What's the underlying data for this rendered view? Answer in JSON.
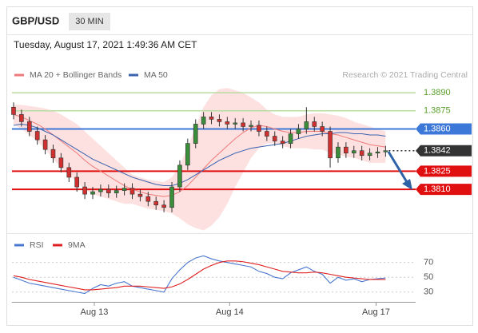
{
  "header": {
    "symbol": "GBP/USD",
    "timeframe": "30 MIN",
    "timestamp": "Tuesday, August 17, 2021 1:49:36 AM CET"
  },
  "chart_data": [
    {
      "type": "candlestick",
      "source": "Research © 2021 Trading Central",
      "up_color": "#3a8d3a",
      "down_color": "#d03030",
      "xlim": [
        -0.2,
        50.8
      ],
      "xticks": [
        {
          "value": 10.2,
          "label": "Aug 13"
        },
        {
          "value": 27.3,
          "label": "Aug 14"
        },
        {
          "value": 45.8,
          "label": "Aug 17"
        }
      ],
      "ylim": [
        1.3775,
        1.39
      ],
      "open": [
        1.3878,
        1.3872,
        1.3866,
        1.3858,
        1.3851,
        1.3843,
        1.3836,
        1.3828,
        1.382,
        1.3812,
        1.3806,
        1.3808,
        1.381,
        1.3807,
        1.3809,
        1.3811,
        1.3806,
        1.3804,
        1.38,
        1.3797,
        1.3795,
        1.3812,
        1.383,
        1.3848,
        1.3864,
        1.387,
        1.3868,
        1.3866,
        1.3864,
        1.3865,
        1.3862,
        1.3863,
        1.3858,
        1.3854,
        1.385,
        1.3848,
        1.3856,
        1.386,
        1.3866,
        1.3862,
        1.3858,
        1.3836,
        1.3845,
        1.384,
        1.3842,
        1.3838,
        1.384,
        1.3841
      ],
      "high": [
        1.3882,
        1.3876,
        1.387,
        1.3862,
        1.3855,
        1.3847,
        1.384,
        1.3832,
        1.3824,
        1.3816,
        1.3812,
        1.3814,
        1.3814,
        1.3813,
        1.3815,
        1.3815,
        1.381,
        1.3808,
        1.3804,
        1.3801,
        1.3816,
        1.3834,
        1.3852,
        1.3868,
        1.3874,
        1.3874,
        1.3872,
        1.387,
        1.3869,
        1.3869,
        1.3867,
        1.3867,
        1.3862,
        1.3858,
        1.3854,
        1.386,
        1.3864,
        1.3878,
        1.387,
        1.3866,
        1.3862,
        1.3849,
        1.3849,
        1.3846,
        1.3846,
        1.3844,
        1.3845,
        1.3846
      ],
      "low": [
        1.3868,
        1.3862,
        1.3854,
        1.3847,
        1.3839,
        1.3832,
        1.3824,
        1.3816,
        1.3808,
        1.3802,
        1.3802,
        1.3804,
        1.3803,
        1.3803,
        1.3805,
        1.3802,
        1.38,
        1.3796,
        1.3793,
        1.3791,
        1.3791,
        1.3808,
        1.3826,
        1.3844,
        1.386,
        1.3864,
        1.3862,
        1.386,
        1.386,
        1.3858,
        1.3858,
        1.3854,
        1.385,
        1.3846,
        1.3844,
        1.3844,
        1.3852,
        1.3856,
        1.3858,
        1.3854,
        1.3828,
        1.3832,
        1.3836,
        1.3836,
        1.3834,
        1.3834,
        1.3836,
        1.3837
      ],
      "close": [
        1.3872,
        1.3866,
        1.3858,
        1.3851,
        1.3843,
        1.3836,
        1.3828,
        1.382,
        1.3812,
        1.3806,
        1.3808,
        1.381,
        1.3807,
        1.3809,
        1.3811,
        1.3806,
        1.3804,
        1.38,
        1.3797,
        1.3795,
        1.3812,
        1.383,
        1.3848,
        1.3864,
        1.387,
        1.3868,
        1.3866,
        1.3864,
        1.3865,
        1.3862,
        1.3863,
        1.3858,
        1.3854,
        1.385,
        1.3848,
        1.3856,
        1.386,
        1.3866,
        1.3862,
        1.3858,
        1.3836,
        1.3845,
        1.384,
        1.3842,
        1.3838,
        1.384,
        1.3841,
        1.3842
      ],
      "series": [
        {
          "name": "MA 20 + Bollinger Bands",
          "color": "#f07a7a",
          "band_color": "#fde0e0",
          "values": [
            1.3872,
            1.387,
            1.3867,
            1.3864,
            1.386,
            1.3855,
            1.385,
            1.3845,
            1.384,
            1.3834,
            1.3829,
            1.3825,
            1.3821,
            1.3817,
            1.3813,
            1.381,
            1.3808,
            1.3806,
            1.3805,
            1.3804,
            1.3805,
            1.3808,
            1.3813,
            1.382,
            1.3827,
            1.3834,
            1.384,
            1.3846,
            1.3852,
            1.3857,
            1.3861,
            1.3863,
            1.3862,
            1.386,
            1.3858,
            1.3857,
            1.3857,
            1.3858,
            1.3858,
            1.3858,
            1.3856,
            1.3855,
            1.3853,
            1.3851,
            1.3849,
            1.3847,
            1.3846,
            1.3845
          ],
          "upper": [
            1.388,
            1.388,
            1.3879,
            1.3878,
            1.3877,
            1.3875,
            1.3872,
            1.3868,
            1.3864,
            1.3858,
            1.3852,
            1.3846,
            1.384,
            1.3834,
            1.3828,
            1.3822,
            1.382,
            1.3818,
            1.3817,
            1.3816,
            1.382,
            1.383,
            1.3845,
            1.3862,
            1.3878,
            1.3888,
            1.3893,
            1.3894,
            1.3892,
            1.389,
            1.3886,
            1.3882,
            1.3876,
            1.3872,
            1.387,
            1.387,
            1.387,
            1.3872,
            1.3873,
            1.3873,
            1.3872,
            1.3871,
            1.3869,
            1.3866,
            1.3864,
            1.3862,
            1.386,
            1.3858
          ],
          "lower": [
            1.3864,
            1.386,
            1.3855,
            1.385,
            1.3843,
            1.3835,
            1.3828,
            1.3822,
            1.3816,
            1.381,
            1.3806,
            1.3804,
            1.3802,
            1.38,
            1.3798,
            1.3798,
            1.3796,
            1.3794,
            1.3793,
            1.3792,
            1.379,
            1.3786,
            1.3781,
            1.3778,
            1.3776,
            1.378,
            1.3787,
            1.3798,
            1.3812,
            1.3824,
            1.3836,
            1.3844,
            1.3848,
            1.3848,
            1.3846,
            1.3844,
            1.3844,
            1.3844,
            1.3843,
            1.3843,
            1.384,
            1.3839,
            1.3837,
            1.3836,
            1.3834,
            1.3832,
            1.3832,
            1.3832
          ]
        },
        {
          "name": "MA 50",
          "color": "#3a62b0",
          "values": [
            1.3863,
            1.3864,
            1.3863,
            1.3861,
            1.3858,
            1.3855,
            1.3851,
            1.3847,
            1.3843,
            1.3839,
            1.3835,
            1.3832,
            1.3829,
            1.3826,
            1.3823,
            1.382,
            1.3818,
            1.3816,
            1.3814,
            1.3813,
            1.3813,
            1.3815,
            1.3818,
            1.3822,
            1.3826,
            1.383,
            1.3834,
            1.3837,
            1.384,
            1.3842,
            1.3844,
            1.3845,
            1.3846,
            1.3847,
            1.3848,
            1.385,
            1.3852,
            1.3854,
            1.3855,
            1.3856,
            1.3856,
            1.3857,
            1.3857,
            1.3856,
            1.3856,
            1.3855,
            1.3855,
            1.3854
          ]
        }
      ],
      "levels": [
        {
          "value": 1.389,
          "label": "1.3890",
          "color": "#b9dca0",
          "text_color": "#5aa02c",
          "box": false,
          "dash": false
        },
        {
          "value": 1.3875,
          "label": "1.3875",
          "color": "#b9dca0",
          "text_color": "#5aa02c",
          "box": false,
          "dash": false
        },
        {
          "value": 1.386,
          "label": "1.3860",
          "color": "#3c78d8",
          "text_color": "#ffffff",
          "box": true,
          "dash": false
        },
        {
          "value": 1.3842,
          "label": "1.3842",
          "color": "#333333",
          "text_color": "#ffffff",
          "box": true,
          "dash": true
        },
        {
          "value": 1.3825,
          "label": "1.3825",
          "color": "#e01010",
          "text_color": "#ffffff",
          "box": true,
          "dash": false
        },
        {
          "value": 1.381,
          "label": "1.3810",
          "color": "#e01010",
          "text_color": "#ffffff",
          "box": true,
          "dash": false
        }
      ]
    },
    {
      "type": "line",
      "xlim": [
        -0.2,
        50.8
      ],
      "ylim": [
        20,
        88
      ],
      "yticks": [
        30,
        50,
        70
      ],
      "series": [
        {
          "name": "RSI",
          "color": "#4a78d0",
          "values": [
            50,
            46,
            42,
            40,
            38,
            36,
            34,
            32,
            30,
            28,
            35,
            40,
            38,
            42,
            44,
            38,
            36,
            34,
            32,
            30,
            48,
            60,
            70,
            76,
            79,
            75,
            72,
            70,
            68,
            66,
            64,
            58,
            55,
            50,
            48,
            56,
            60,
            64,
            58,
            54,
            42,
            50,
            46,
            48,
            44,
            47,
            48,
            49
          ]
        },
        {
          "name": "9MA",
          "color": "#e02020",
          "values": [
            52,
            50,
            47,
            45,
            43,
            41,
            39,
            37,
            35,
            33,
            33,
            34,
            35,
            36,
            38,
            38,
            38,
            37,
            36,
            35,
            37,
            41,
            47,
            54,
            61,
            66,
            70,
            72,
            72,
            71,
            69,
            67,
            64,
            61,
            58,
            57,
            56,
            56,
            57,
            56,
            54,
            52,
            50,
            49,
            48,
            47,
            47,
            47
          ]
        }
      ]
    }
  ]
}
